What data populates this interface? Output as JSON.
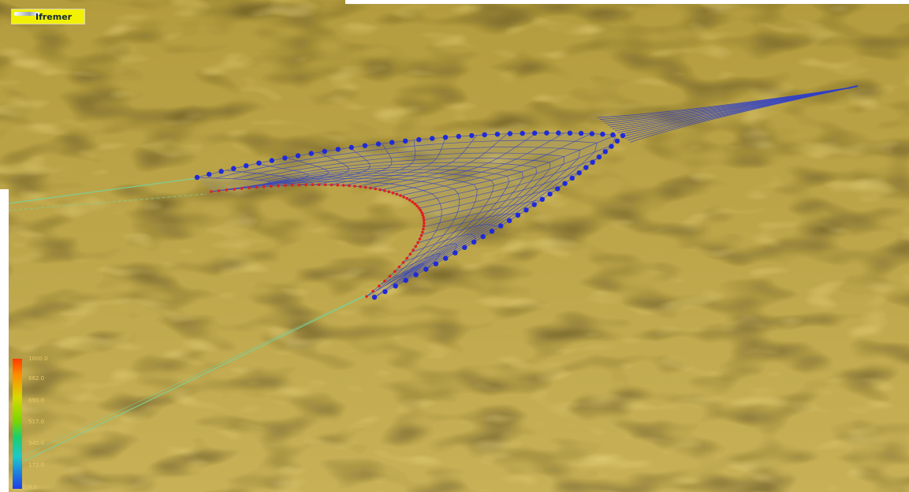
{
  "logo": {
    "text": "Ifremer"
  },
  "legend": {
    "labels": [
      "1000.0",
      "862.0",
      "690.0",
      "517.0",
      "345.0",
      "172.0",
      "0.0"
    ]
  },
  "colors": {
    "seabed": "#b8a040",
    "net_mesh": "#3040c8",
    "float_line_markers": "#1f2ad8",
    "ground_rope_markers": "#e02020",
    "warp_lines": "#7ad29a",
    "logo_background": "#f1f100"
  },
  "scene": {
    "description_icons": [
      "trawl-net",
      "seabed-terrain",
      "color-scale"
    ]
  }
}
